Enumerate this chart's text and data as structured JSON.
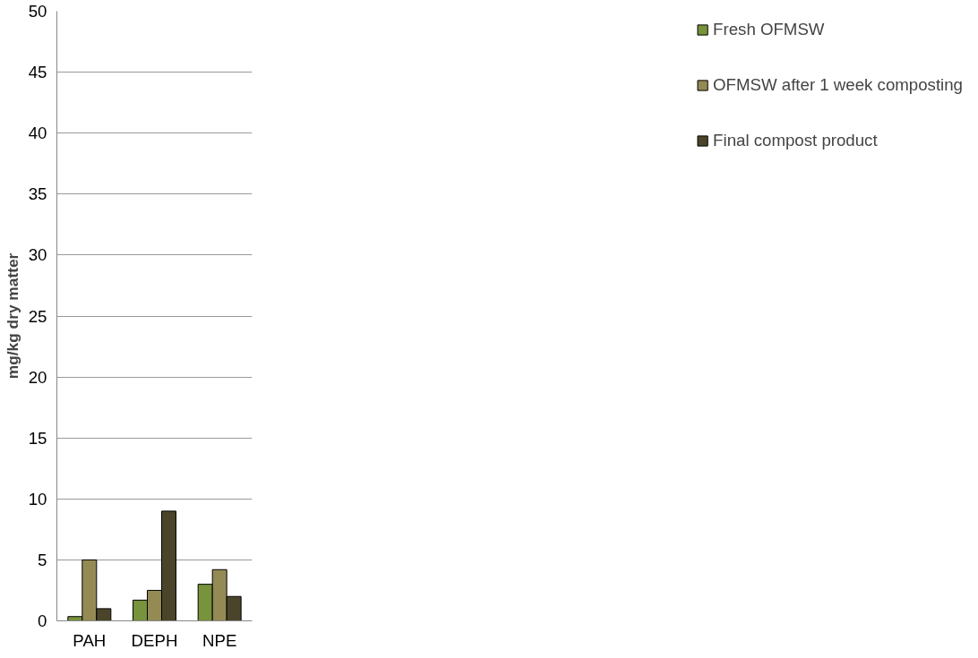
{
  "chart_data": {
    "type": "bar",
    "ylabel": "mg/kg dry matter",
    "categories": [
      "PAH",
      "DEPH",
      "NPE"
    ],
    "series": [
      {
        "name": "Fresh OFMSW",
        "color": "#77933c",
        "values": [
          0.35,
          1.7,
          3.0
        ]
      },
      {
        "name": "OFMSW after 1 week composting",
        "color": "#948a54",
        "values": [
          5.0,
          2.5,
          4.2
        ]
      },
      {
        "name": "Final compost product",
        "color": "#4a452a",
        "values": [
          1.0,
          9.0,
          2.0
        ]
      }
    ],
    "ylim": [
      0,
      50
    ],
    "yticks": [
      0,
      5,
      10,
      15,
      20,
      25,
      30,
      35,
      40,
      45,
      50
    ],
    "grid": "y",
    "legend": "right"
  }
}
